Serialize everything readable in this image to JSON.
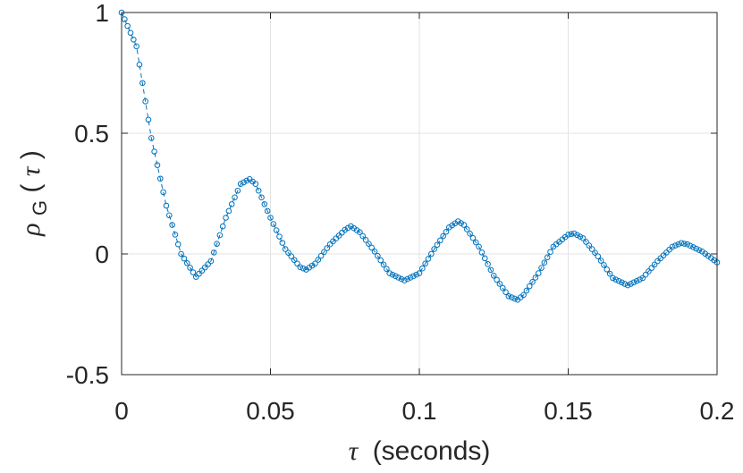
{
  "chart_data": {
    "type": "line",
    "title": "",
    "xlabel": {
      "symbol": "τ",
      "text": "(seconds)"
    },
    "ylabel": {
      "symbol": "ρ",
      "subscript": "G",
      "paren_open": "(",
      "arg": "τ",
      "paren_close": ")"
    },
    "xlim": [
      0,
      0.2
    ],
    "ylim": [
      -0.5,
      1
    ],
    "xticks": [
      0,
      0.05,
      0.1,
      0.15,
      0.2
    ],
    "xtick_labels": [
      "0",
      "0.05",
      "0.1",
      "0.15",
      "0.2"
    ],
    "yticks": [
      -0.5,
      0,
      0.5,
      1
    ],
    "ytick_labels": [
      "-0.5",
      "0",
      "0.5",
      "1"
    ],
    "grid": true,
    "box": true,
    "series": [
      {
        "color": "#0072BD",
        "line_style": "dashed",
        "marker": "circle",
        "points": [
          [
            0.0,
            1.0
          ],
          [
            0.005,
            0.86
          ],
          [
            0.01,
            0.48
          ],
          [
            0.015,
            0.2
          ],
          [
            0.02,
            0.0
          ],
          [
            0.025,
            -0.095
          ],
          [
            0.03,
            -0.03
          ],
          [
            0.035,
            0.15
          ],
          [
            0.04,
            0.29
          ],
          [
            0.043,
            0.31
          ],
          [
            0.045,
            0.29
          ],
          [
            0.05,
            0.15
          ],
          [
            0.055,
            0.02
          ],
          [
            0.06,
            -0.055
          ],
          [
            0.062,
            -0.065
          ],
          [
            0.065,
            -0.04
          ],
          [
            0.07,
            0.04
          ],
          [
            0.075,
            0.1
          ],
          [
            0.077,
            0.115
          ],
          [
            0.08,
            0.09
          ],
          [
            0.085,
            0.01
          ],
          [
            0.09,
            -0.08
          ],
          [
            0.095,
            -0.11
          ],
          [
            0.1,
            -0.08
          ],
          [
            0.105,
            0.02
          ],
          [
            0.11,
            0.11
          ],
          [
            0.113,
            0.135
          ],
          [
            0.115,
            0.12
          ],
          [
            0.12,
            0.03
          ],
          [
            0.125,
            -0.09
          ],
          [
            0.13,
            -0.175
          ],
          [
            0.133,
            -0.19
          ],
          [
            0.135,
            -0.17
          ],
          [
            0.14,
            -0.08
          ],
          [
            0.145,
            0.03
          ],
          [
            0.15,
            0.08
          ],
          [
            0.152,
            0.085
          ],
          [
            0.155,
            0.065
          ],
          [
            0.16,
            -0.01
          ],
          [
            0.165,
            -0.1
          ],
          [
            0.17,
            -0.13
          ],
          [
            0.175,
            -0.1
          ],
          [
            0.18,
            -0.03
          ],
          [
            0.185,
            0.03
          ],
          [
            0.188,
            0.045
          ],
          [
            0.19,
            0.04
          ],
          [
            0.195,
            0.01
          ],
          [
            0.2,
            -0.035
          ]
        ]
      }
    ]
  }
}
